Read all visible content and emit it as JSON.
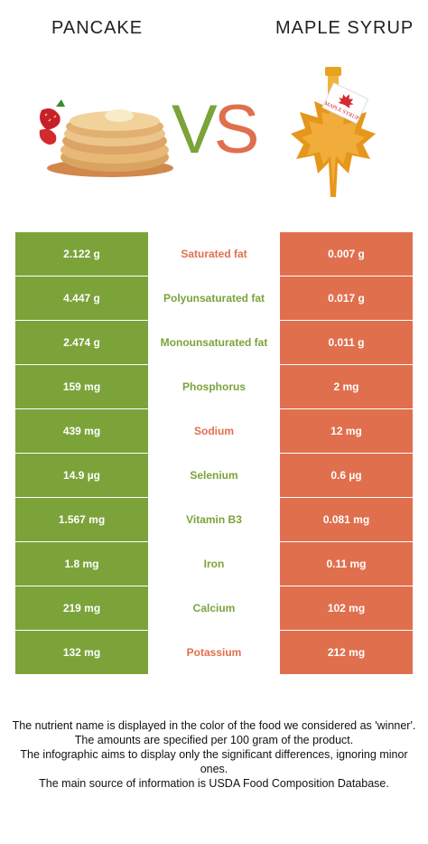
{
  "header": {
    "left_title": "PANCAKE",
    "right_title": "MAPLE SYRUP",
    "vs_v": "V",
    "vs_s": "S"
  },
  "colors": {
    "pancake_green": "#7ba33a",
    "syrup_orange": "#e06f4e"
  },
  "images": {
    "pancake": "pancake-stack-with-strawberries-photo",
    "syrup": "maple-leaf-syrup-bottle-photo",
    "syrup_label": "MAPLE SYRUP"
  },
  "rows": [
    {
      "pancake": "2.122 g",
      "nutrient": "Saturated fat",
      "syrup": "0.007 g",
      "winner": "syrup"
    },
    {
      "pancake": "4.447 g",
      "nutrient": "Polyunsaturated fat",
      "syrup": "0.017 g",
      "winner": "pancake"
    },
    {
      "pancake": "2.474 g",
      "nutrient": "Monounsaturated fat",
      "syrup": "0.011 g",
      "winner": "pancake"
    },
    {
      "pancake": "159 mg",
      "nutrient": "Phosphorus",
      "syrup": "2 mg",
      "winner": "pancake"
    },
    {
      "pancake": "439 mg",
      "nutrient": "Sodium",
      "syrup": "12 mg",
      "winner": "syrup"
    },
    {
      "pancake": "14.9 µg",
      "nutrient": "Selenium",
      "syrup": "0.6 µg",
      "winner": "pancake"
    },
    {
      "pancake": "1.567 mg",
      "nutrient": "Vitamin B3",
      "syrup": "0.081 mg",
      "winner": "pancake"
    },
    {
      "pancake": "1.8 mg",
      "nutrient": "Iron",
      "syrup": "0.11 mg",
      "winner": "pancake"
    },
    {
      "pancake": "219 mg",
      "nutrient": "Calcium",
      "syrup": "102 mg",
      "winner": "pancake"
    },
    {
      "pancake": "132 mg",
      "nutrient": "Potassium",
      "syrup": "212 mg",
      "winner": "syrup"
    }
  ],
  "footer": {
    "line1": "The nutrient name is displayed in the color of the food we considered as 'winner'.",
    "line2": "The amounts are specified per 100 gram of the product.",
    "line3": "The infographic aims to display only the significant differences, ignoring minor ones.",
    "line4": "The main source of information is USDA Food Composition Database."
  }
}
